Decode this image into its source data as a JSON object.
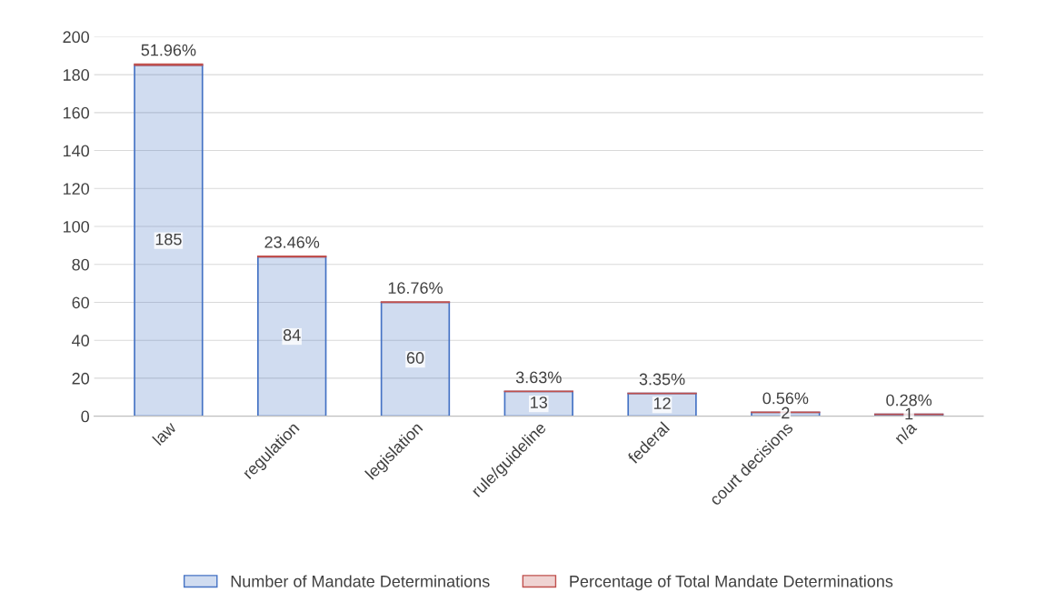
{
  "chart_data": {
    "type": "bar",
    "stacked": true,
    "categories": [
      "law",
      "regulation",
      "legislation",
      "rule/guideline",
      "federal",
      "court decisions",
      "n/a"
    ],
    "series": [
      {
        "name": "Number of Mandate Determinations",
        "color": "#4472c4",
        "values": [
          185,
          84,
          60,
          13,
          12,
          2,
          1
        ],
        "value_labels": [
          "185",
          "84",
          "60",
          "13",
          "12",
          "2",
          "1"
        ]
      },
      {
        "name": "Percentage of Total Mandate Determinations",
        "color": "#c0504d",
        "values": [
          0.5196,
          0.2346,
          0.1676,
          0.0363,
          0.0335,
          0.0056,
          0.0028
        ],
        "value_labels": [
          "51.96%",
          "23.46%",
          "16.76%",
          "3.63%",
          "3.35%",
          "0.56%",
          "0.28%"
        ]
      }
    ],
    "ylim": [
      0,
      200
    ],
    "yticks": [
      0,
      20,
      40,
      60,
      80,
      100,
      120,
      140,
      160,
      180,
      200
    ],
    "grid": "y",
    "legend": "bottom"
  }
}
